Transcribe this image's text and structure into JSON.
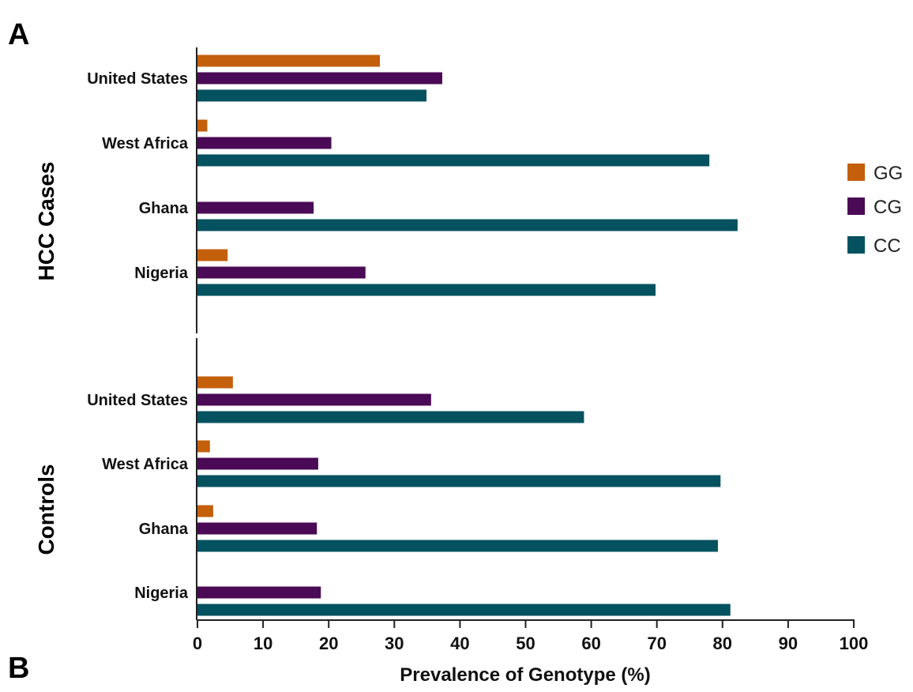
{
  "panel_labels": {
    "top": "A",
    "bottom": "B"
  },
  "chart_data": {
    "type": "bar",
    "orientation": "horizontal",
    "xlabel": "Prevalence of Genotype (%)",
    "xlim": [
      0,
      100
    ],
    "xticks": [
      "0",
      "10",
      "20",
      "30",
      "40",
      "50",
      "60",
      "70",
      "80",
      "90",
      "100"
    ],
    "legend_position": "right",
    "groups": [
      {
        "name": "HCC Cases",
        "categories": [
          "United States",
          "West Africa",
          "Ghana",
          "Nigeria"
        ],
        "series": [
          {
            "name": "GG",
            "color": "#C45F0C",
            "values": [
              27.8,
              1.5,
              0,
              4.6
            ]
          },
          {
            "name": "CG",
            "color": "#4A0A55",
            "values": [
              37.3,
              20.4,
              17.7,
              25.6
            ]
          },
          {
            "name": "CC",
            "color": "#04525F",
            "values": [
              34.9,
              78.0,
              82.3,
              69.8
            ]
          }
        ]
      },
      {
        "name": "Controls",
        "categories": [
          "United States",
          "West Africa",
          "Ghana",
          "Nigeria"
        ],
        "series": [
          {
            "name": "GG",
            "color": "#C45F0C",
            "values": [
              5.4,
              1.9,
              2.4,
              0
            ]
          },
          {
            "name": "CG",
            "color": "#4A0A55",
            "values": [
              35.6,
              18.4,
              18.2,
              18.8
            ]
          },
          {
            "name": "CC",
            "color": "#04525F",
            "values": [
              58.9,
              79.7,
              79.3,
              81.2
            ]
          }
        ]
      }
    ],
    "legend": [
      {
        "name": "GG",
        "color": "#C45F0C"
      },
      {
        "name": "CG",
        "color": "#4A0A55"
      },
      {
        "name": "CC",
        "color": "#04525F"
      }
    ]
  }
}
